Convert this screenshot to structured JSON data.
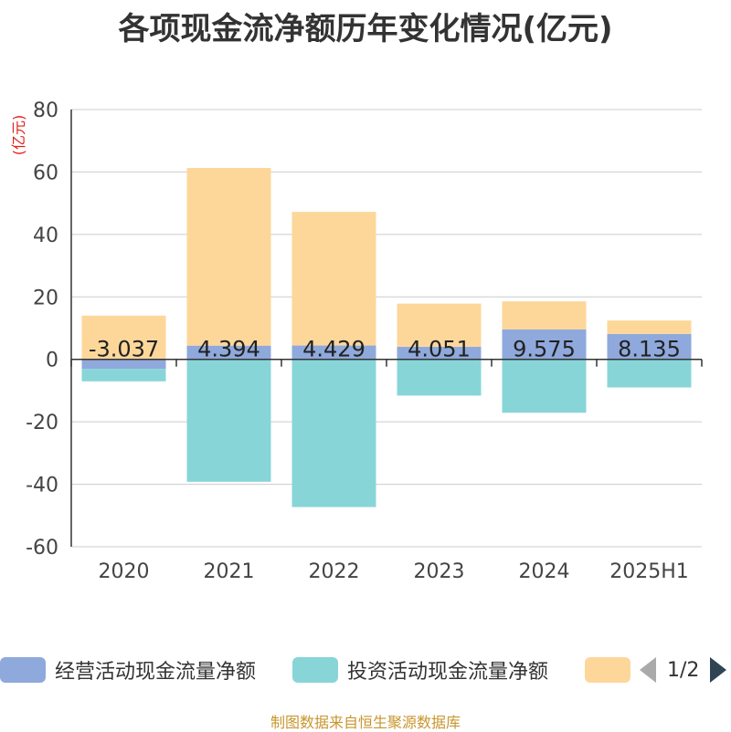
{
  "title": "各项现金流净额历年变化情况(亿元)",
  "unit_label": "(亿元)",
  "footer": "制图数据来自恒生聚源数据库",
  "legend": {
    "items": [
      {
        "label": "经营活动现金流量净额",
        "color": "#8fa9dc"
      },
      {
        "label": "投资活动现金流量净额",
        "color": "#88d5d8"
      },
      {
        "label": "",
        "color": "#fdd79a"
      }
    ],
    "page_text": "1/2"
  },
  "chart_data": {
    "type": "bar",
    "stacked": true,
    "categories": [
      "2020",
      "2021",
      "2022",
      "2023",
      "2024",
      "2025H1"
    ],
    "ylim": [
      -60,
      80
    ],
    "yticks": [
      80,
      60,
      40,
      20,
      0,
      -20,
      -40,
      -60
    ],
    "grid": true,
    "legend_position": "bottom",
    "series": [
      {
        "name": "经营活动现金流量净额",
        "color": "#8fa9dc",
        "values": [
          -3.037,
          4.394,
          4.429,
          4.051,
          9.575,
          8.135
        ],
        "labels": [
          "-3.037",
          "4.394",
          "4.429",
          "4.051",
          "9.575",
          "8.135"
        ]
      },
      {
        "name": "投资活动现金流量净额",
        "color": "#88d5d8",
        "values": [
          -4.0,
          -39.2,
          -47.3,
          -11.6,
          -17.1,
          -9.0
        ]
      },
      {
        "color": "#fdd79a",
        "values": [
          14.0,
          56.9,
          42.8,
          13.8,
          9.0,
          4.3
        ]
      }
    ]
  }
}
